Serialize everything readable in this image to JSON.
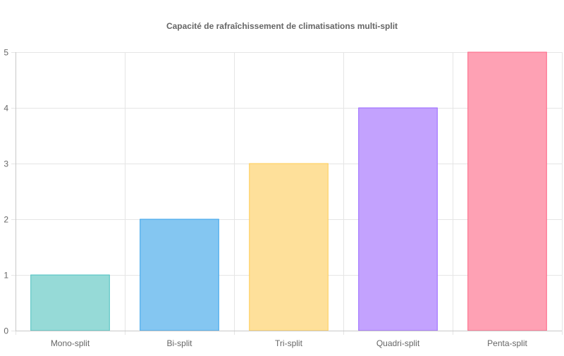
{
  "chart_data": {
    "type": "bar",
    "title": "Capacité de rafraîchissement de climatisations multi-split",
    "xlabel": "",
    "ylabel": "",
    "categories": [
      "Mono-split",
      "Bi-split",
      "Tri-split",
      "Quadri-split",
      "Penta-split"
    ],
    "values": [
      1,
      2,
      3,
      4,
      5
    ],
    "yticks": [
      "0",
      "1",
      "2",
      "3",
      "4",
      "5"
    ],
    "ylim": [
      0,
      5
    ],
    "grid": true,
    "legend": "none",
    "colors": {
      "fill": [
        "#96dad7",
        "#84c6f1",
        "#fee09a",
        "#c3a2fe",
        "#fea1b4"
      ],
      "border": [
        "#4bc0c0",
        "#36a2eb",
        "#ffcd56",
        "#9966ff",
        "#ff6384"
      ]
    }
  }
}
